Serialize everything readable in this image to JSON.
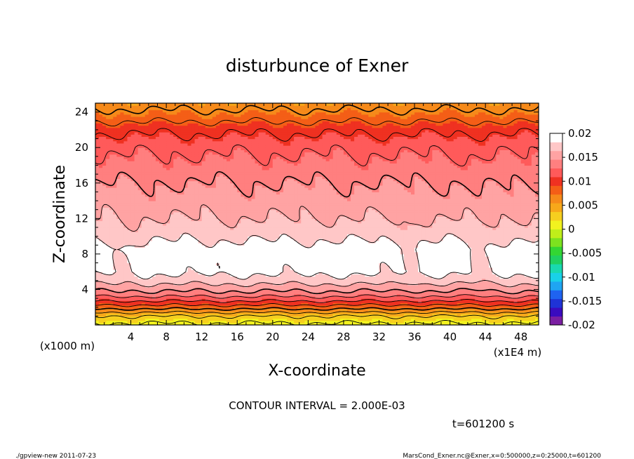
{
  "chart_data": {
    "type": "contour",
    "title": "disturbunce of Exner",
    "xlabel": "X-coordinate",
    "ylabel": "Z-coordinate",
    "x_unit": "(x1E4 m)",
    "y_unit": "(x1000 m)",
    "xlim": [
      0,
      50
    ],
    "ylim": [
      0,
      25
    ],
    "x_ticks": [
      4,
      8,
      12,
      16,
      20,
      24,
      28,
      32,
      36,
      40,
      44,
      48
    ],
    "y_ticks": [
      4,
      8,
      12,
      16,
      20,
      24
    ],
    "contour_interval_text": "CONTOUR INTERVAL = 2.000E-03",
    "time_text": "t=601200 s",
    "colorbar": {
      "ticks": [
        "0.02",
        "0.015",
        "0.01",
        "0.005",
        "0",
        "-0.005",
        "-0.01",
        "-0.015",
        "-0.02"
      ],
      "range": [
        -0.02,
        0.02
      ],
      "colors": [
        "#7b1fa2",
        "#3a0bbf",
        "#1f33d6",
        "#1f63f0",
        "#1fa5f2",
        "#19d1e8",
        "#19d9b0",
        "#20d060",
        "#33d633",
        "#7ce21f",
        "#c0ee1a",
        "#f2f21f",
        "#f6cf1f",
        "#f7a81a",
        "#f68a1a",
        "#f45e17",
        "#ef3121",
        "#ff5a5a",
        "#ff7f7f",
        "#ffa3a3",
        "#ffc7c7"
      ]
    },
    "vertical_profile": [
      {
        "z": 0.0,
        "value": 0.0015
      },
      {
        "z": 1.0,
        "value": 0.004
      },
      {
        "z": 2.0,
        "value": 0.009
      },
      {
        "z": 2.8,
        "value": 0.0125
      },
      {
        "z": 3.6,
        "value": 0.0155
      },
      {
        "z": 5.0,
        "value": 0.019
      },
      {
        "z": 6.0,
        "value": 0.0205
      },
      {
        "z": 8.5,
        "value": 0.021
      },
      {
        "z": 10.0,
        "value": 0.0195
      },
      {
        "z": 12.0,
        "value": 0.018
      },
      {
        "z": 16.0,
        "value": 0.016
      },
      {
        "z": 20.0,
        "value": 0.0135
      },
      {
        "z": 22.0,
        "value": 0.0115
      },
      {
        "z": 23.5,
        "value": 0.009
      },
      {
        "z": 25.0,
        "value": 0.007
      }
    ],
    "contour_levels": [
      0.002,
      0.004,
      0.006,
      0.008,
      0.01,
      0.012,
      0.014,
      0.016,
      0.018,
      0.02
    ]
  },
  "footer": {
    "left": "./gpview-new  2011-07-23",
    "right": "MarsCond_Exner.nc@Exner,x=0:500000,z=0:25000,t=601200"
  }
}
